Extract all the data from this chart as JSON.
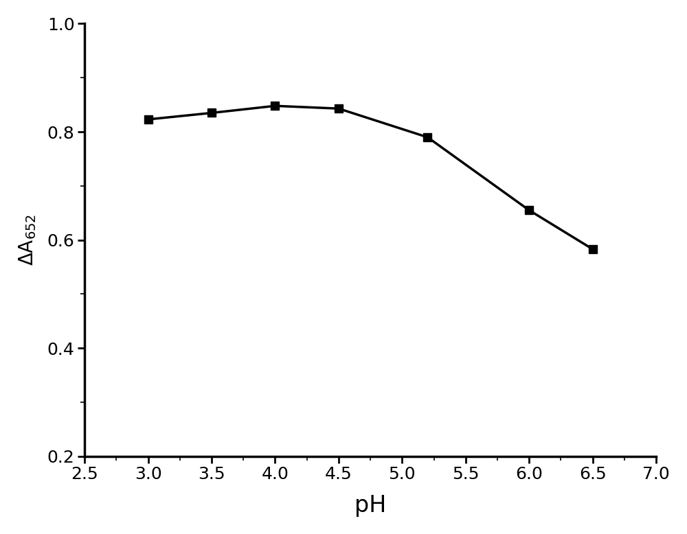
{
  "x": [
    3.0,
    3.5,
    4.0,
    4.5,
    5.2,
    6.0,
    6.5
  ],
  "y": [
    0.823,
    0.835,
    0.848,
    0.843,
    0.79,
    0.655,
    0.583
  ],
  "xlabel": "pH",
  "ylabel": "ΔA_{652}",
  "xlim": [
    2.5,
    7.0
  ],
  "ylim": [
    0.2,
    1.0
  ],
  "xticks": [
    2.5,
    3.0,
    3.5,
    4.0,
    4.5,
    5.0,
    5.5,
    6.0,
    6.5,
    7.0
  ],
  "yticks": [
    0.2,
    0.4,
    0.6,
    0.8,
    1.0
  ],
  "line_color": "#000000",
  "marker": "s",
  "marker_size": 9,
  "line_width": 2.5,
  "background_color": "#ffffff",
  "xlabel_fontsize": 24,
  "ylabel_fontsize": 20,
  "tick_fontsize": 18,
  "figsize": [
    10.0,
    7.78
  ],
  "dpi": 100
}
